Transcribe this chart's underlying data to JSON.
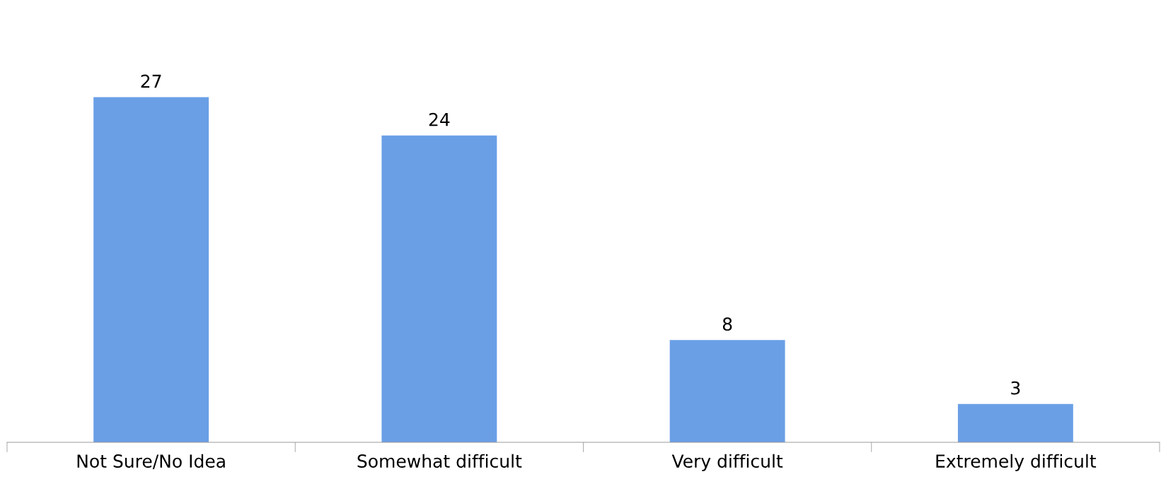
{
  "chart_data": {
    "type": "bar",
    "categories": [
      "Not Sure/No Idea",
      "Somewhat difficult",
      "Very difficult",
      "Extremely difficult"
    ],
    "values": [
      27,
      24,
      8,
      3
    ],
    "color": "#6a9fe6",
    "data_labels": true,
    "grid": false,
    "legend": false,
    "tick_labels": "x"
  }
}
